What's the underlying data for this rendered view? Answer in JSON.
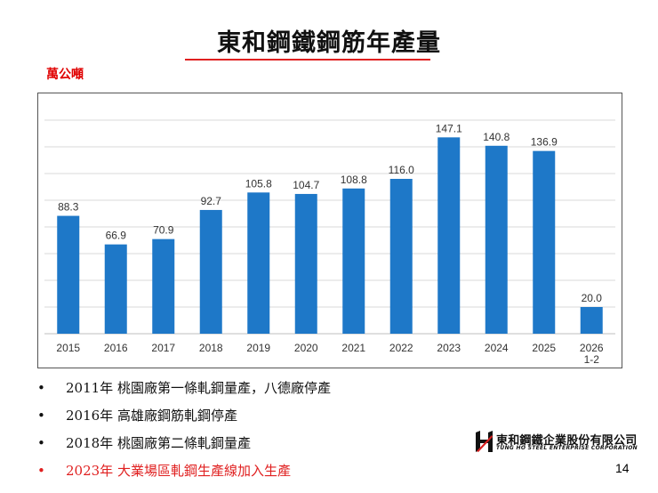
{
  "title": "東和鋼鐵鋼筋年產量",
  "unit": "萬公噸",
  "chart_data": {
    "type": "bar",
    "categories": [
      "2015",
      "2016",
      "2017",
      "2018",
      "2019",
      "2020",
      "2021",
      "2022",
      "2023",
      "2024",
      "2025",
      "2026\n1-2"
    ],
    "values": [
      88.3,
      66.9,
      70.9,
      92.7,
      105.8,
      104.7,
      108.8,
      116.0,
      147.1,
      140.8,
      136.9,
      20.0
    ],
    "value_labels": [
      "88.3",
      "66.9",
      "70.9",
      "92.7",
      "105.8",
      "104.7",
      "108.8",
      "116.0",
      "147.1",
      "140.8",
      "136.9",
      "20.0"
    ],
    "ylim": [
      0,
      160
    ],
    "gridlines": [
      20,
      40,
      60,
      80,
      100,
      120,
      140,
      160
    ],
    "grid": true,
    "bar_color": "#1e78c8",
    "title": "東和鋼鐵鋼筋年產量",
    "ylabel": "萬公噸",
    "xlabel": ""
  },
  "bullets": [
    {
      "text": "2011年 桃園廠第一條軋鋼量產，八德廠停產",
      "color": "#111111"
    },
    {
      "text": "2016年 高雄廠鋼筋軋鋼停產",
      "color": "#111111"
    },
    {
      "text": "2018年 桃園廠第二條軋鋼量產",
      "color": "#111111"
    },
    {
      "text": "2023年 大業場區軋鋼生產線加入生產",
      "color": "#e02020"
    }
  ],
  "bullet_symbol": "•",
  "logo": {
    "name": "東和鋼鐵企業股份有限公司",
    "english": "TUNG HO STEEL ENTERPRISE CORPORATION"
  },
  "page_number": "14"
}
